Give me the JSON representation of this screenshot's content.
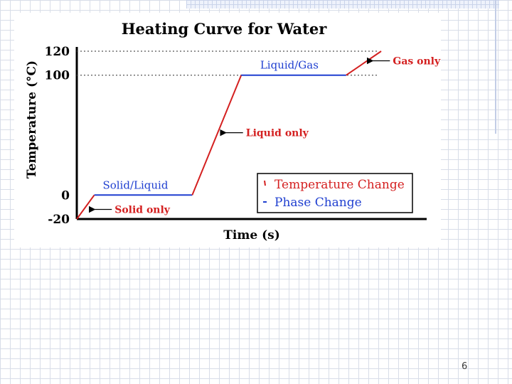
{
  "page": {
    "number": "6"
  },
  "colors": {
    "temp_change": "#d42020",
    "phase_change": "#1f3fd0",
    "axis": "#000000",
    "guide": "#555555"
  },
  "chart_data": {
    "type": "line",
    "title": "Heating Curve for Water",
    "xlabel": "Time (s)",
    "ylabel": "Temperature (°C)",
    "ylim": [
      -20,
      120
    ],
    "xlim": [
      0,
      10
    ],
    "yticks": [
      {
        "value": 120,
        "label": "120"
      },
      {
        "value": 100,
        "label": "100"
      },
      {
        "value": 0,
        "label": "0"
      },
      {
        "value": -20,
        "label": "-20"
      }
    ],
    "grid": false,
    "guides": [
      120,
      100
    ],
    "segments": [
      {
        "kind": "temperature_change",
        "points": [
          [
            0,
            -20
          ],
          [
            0.5,
            0
          ]
        ]
      },
      {
        "kind": "phase_change",
        "points": [
          [
            0.5,
            0
          ],
          [
            3.3,
            0
          ]
        ]
      },
      {
        "kind": "temperature_change",
        "points": [
          [
            3.3,
            0
          ],
          [
            4.7,
            100
          ]
        ]
      },
      {
        "kind": "phase_change",
        "points": [
          [
            4.7,
            100
          ],
          [
            7.7,
            100
          ]
        ]
      },
      {
        "kind": "temperature_change",
        "points": [
          [
            7.7,
            100
          ],
          [
            8.7,
            120
          ]
        ]
      }
    ],
    "annotations": [
      {
        "id": "solid-liquid",
        "text": "Solid/Liquid",
        "kind": "phase_change",
        "anchor": [
          0.7,
          0
        ],
        "position": "above",
        "arrow": false
      },
      {
        "id": "solid-only",
        "text": "Solid only",
        "kind": "temperature_change",
        "anchor": [
          0.35,
          -12
        ],
        "position": "right",
        "arrow": true
      },
      {
        "id": "liquid-only",
        "text": "Liquid only",
        "kind": "temperature_change",
        "anchor": [
          4.1,
          52
        ],
        "position": "right",
        "arrow": true
      },
      {
        "id": "liquid-gas",
        "text": "Liquid/Gas",
        "kind": "phase_change",
        "anchor": [
          5.2,
          100
        ],
        "position": "above",
        "arrow": false
      },
      {
        "id": "gas-only",
        "text": "Gas only",
        "kind": "temperature_change",
        "anchor": [
          8.3,
          112
        ],
        "position": "right",
        "arrow": true
      }
    ],
    "legend": {
      "position": "bottom-right",
      "entries": [
        {
          "label": "Temperature Change",
          "kind": "temperature_change"
        },
        {
          "label": "Phase Change",
          "kind": "phase_change"
        }
      ]
    }
  }
}
